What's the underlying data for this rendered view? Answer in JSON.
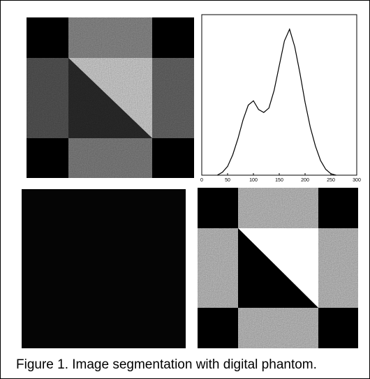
{
  "caption": "Figure 1. Image segmentation with digital phantom.",
  "chart_data": {
    "type": "line",
    "x": [
      30,
      40,
      50,
      60,
      70,
      80,
      90,
      100,
      110,
      120,
      130,
      140,
      150,
      160,
      170,
      180,
      190,
      200,
      210,
      220,
      230,
      240,
      250,
      260
    ],
    "series": [
      {
        "color": "#000000",
        "values": [
          0,
          2,
          6,
          14,
          25,
          38,
          48,
          51,
          45,
          43,
          46,
          58,
          75,
          92,
          100,
          88,
          70,
          50,
          33,
          20,
          10,
          4,
          1,
          0
        ]
      }
    ],
    "xlim": [
      0,
      300
    ],
    "xticks": [
      0,
      50,
      100,
      150,
      200,
      250,
      300
    ],
    "ylim": [
      0,
      110
    ]
  }
}
